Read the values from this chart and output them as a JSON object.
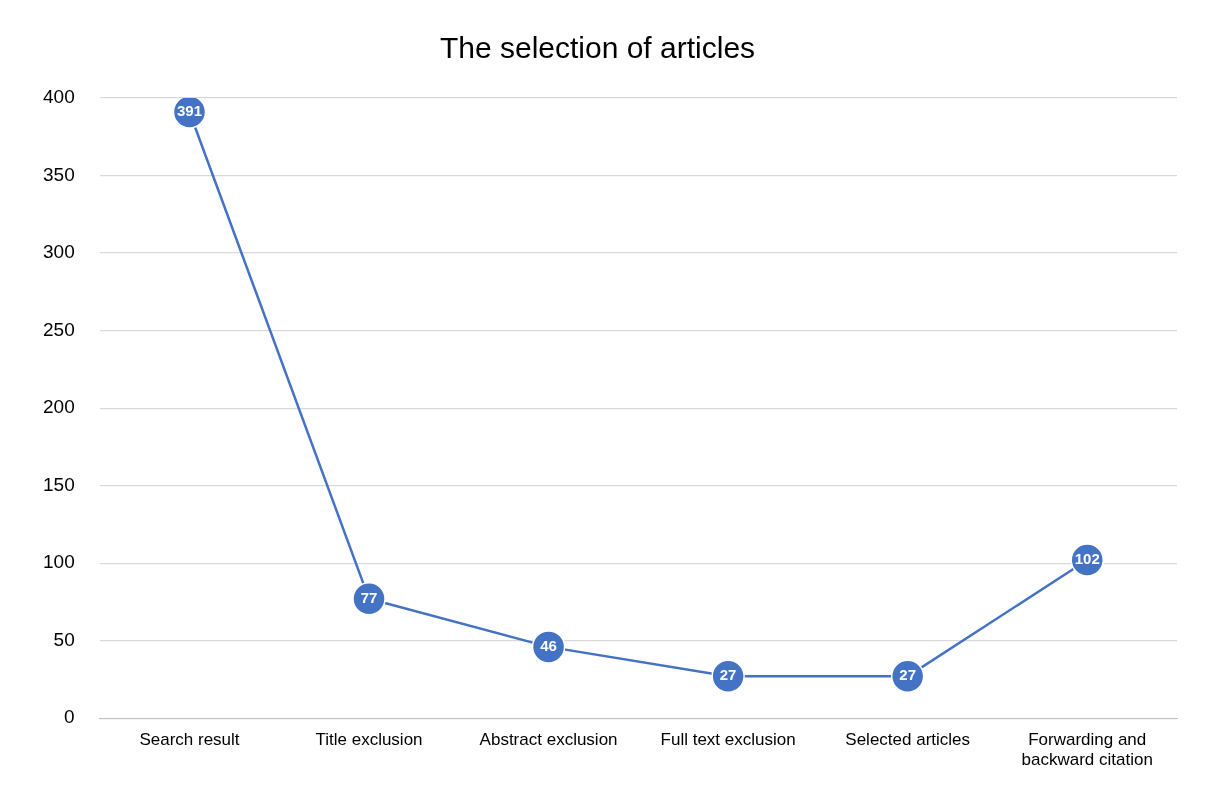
{
  "chart_data": {
    "type": "line",
    "title": "The selection of articles",
    "categories": [
      "Search result",
      "Title exclusion",
      "Abstract exclusion",
      "Full text exclusion",
      "Selected articles",
      "Forwarding and backward citation"
    ],
    "values": [
      391,
      77,
      46,
      27,
      27,
      102
    ],
    "color": "#4472c4",
    "ylim": [
      0,
      400
    ],
    "yticks": [
      0,
      50,
      100,
      150,
      200,
      250,
      300,
      350,
      400
    ],
    "grid": "y",
    "legend": false,
    "marker": "circle",
    "line_style": "solid",
    "data_labels": true
  }
}
